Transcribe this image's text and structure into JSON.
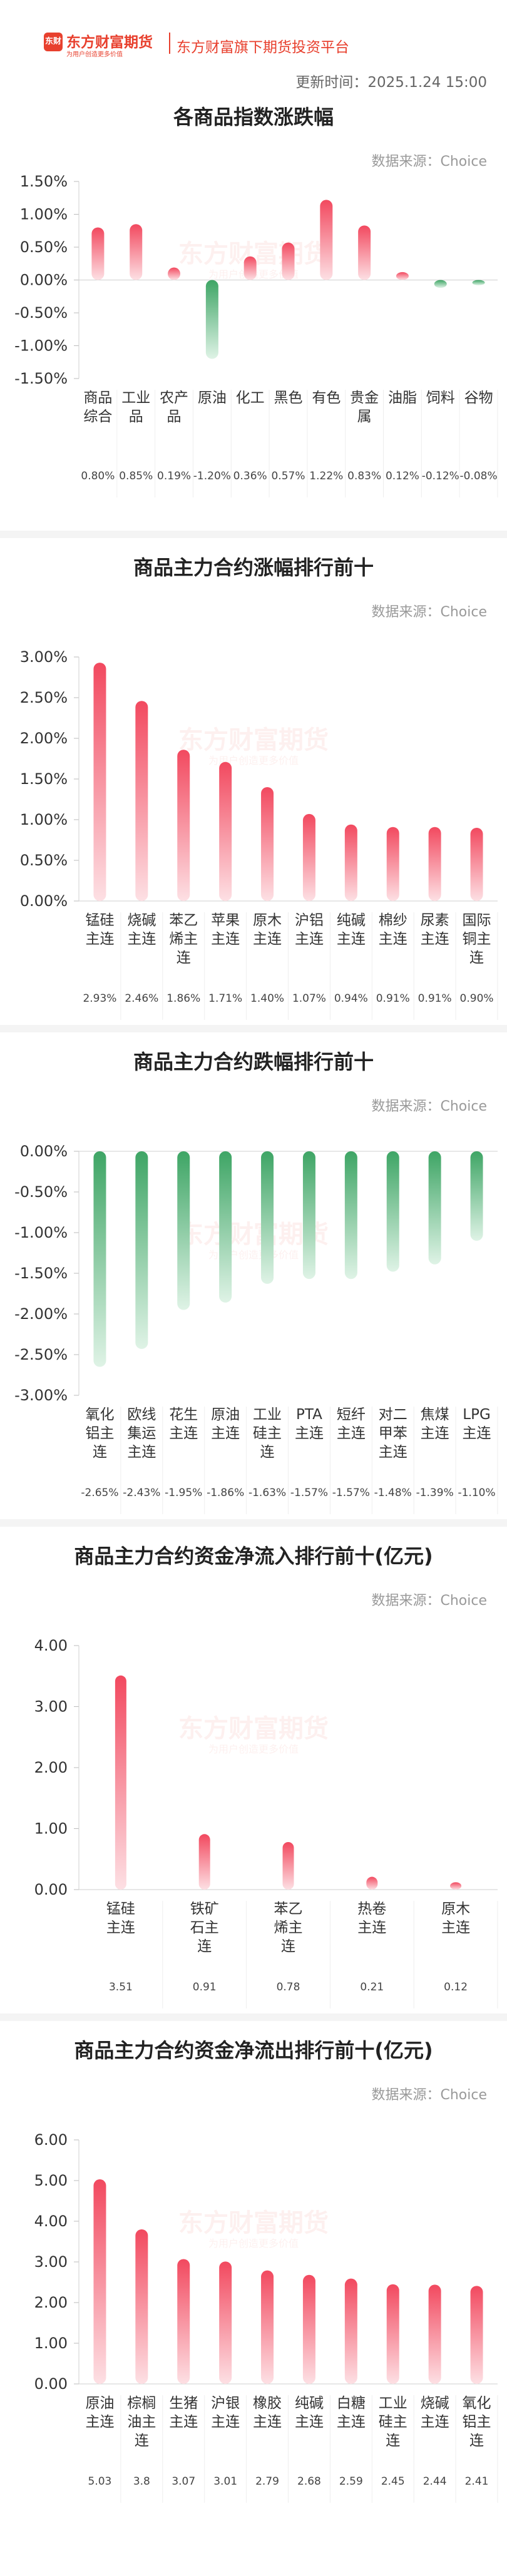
{
  "header": {
    "logo_badge": "东财",
    "logo_text": "东方财富期货",
    "logo_slogan": "为用户创造更多价值",
    "platform": "东方财富旗下期货投资平台",
    "update_time": "更新时间：2025.1.24 15:00"
  },
  "watermark": {
    "main": "东方财富期货",
    "sub": "为用户创造更多价值"
  },
  "colors": {
    "up_top": "#f2495f",
    "up_bottom": "#fde0e4",
    "down_top": "#3ea565",
    "down_bottom": "#dff3e6",
    "brand": "#e8402e"
  },
  "chart_data": [
    {
      "type": "bar",
      "title": "各商品指数涨跌幅",
      "source": "数据来源：Choice",
      "categories": [
        "商品综合",
        "工业品",
        "农产品",
        "原油",
        "化工",
        "黑色",
        "有色",
        "贵金属",
        "油脂",
        "饲料",
        "谷物"
      ],
      "cat_lines": [
        [
          "商品",
          "综合"
        ],
        [
          "工业",
          "品"
        ],
        [
          "农产",
          "品"
        ],
        [
          "原油"
        ],
        [
          "化工"
        ],
        [
          "黑色"
        ],
        [
          "有色"
        ],
        [
          "贵金",
          "属"
        ],
        [
          "油脂"
        ],
        [
          "饲料"
        ],
        [
          "谷物"
        ]
      ],
      "values": [
        0.8,
        0.85,
        0.19,
        -1.2,
        0.36,
        0.57,
        1.22,
        0.83,
        0.12,
        -0.12,
        -0.08
      ],
      "labels": [
        "0.80%",
        "0.85%",
        "0.19%",
        "-1.20%",
        "0.36%",
        "0.57%",
        "1.22%",
        "0.83%",
        "0.12%",
        "-0.12%",
        "-0.08%"
      ],
      "ylim": [
        -1.5,
        1.5
      ],
      "yticks": [
        1.5,
        1.0,
        0.5,
        0.0,
        -0.5,
        -1.0,
        -1.5
      ],
      "ytick_labels": [
        "1.50%",
        "1.00%",
        "0.50%",
        "0.00%",
        "-0.50%",
        "-1.00%",
        "-1.50%"
      ]
    },
    {
      "type": "bar",
      "title": "商品主力合约涨幅排行前十",
      "source": "数据来源：Choice",
      "categories": [
        "锰硅主连",
        "烧碱主连",
        "苯乙烯主连",
        "苹果主连",
        "原木主连",
        "沪铝主连",
        "纯碱主连",
        "棉纱主连",
        "尿素主连",
        "国际铜主连"
      ],
      "cat_lines": [
        [
          "锰硅",
          "主连"
        ],
        [
          "烧碱",
          "主连"
        ],
        [
          "苯乙",
          "烯主",
          "连"
        ],
        [
          "苹果",
          "主连"
        ],
        [
          "原木",
          "主连"
        ],
        [
          "沪铝",
          "主连"
        ],
        [
          "纯碱",
          "主连"
        ],
        [
          "棉纱",
          "主连"
        ],
        [
          "尿素",
          "主连"
        ],
        [
          "国际",
          "铜主",
          "连"
        ]
      ],
      "values": [
        2.93,
        2.46,
        1.86,
        1.71,
        1.4,
        1.07,
        0.94,
        0.91,
        0.91,
        0.9
      ],
      "labels": [
        "2.93%",
        "2.46%",
        "1.86%",
        "1.71%",
        "1.40%",
        "1.07%",
        "0.94%",
        "0.91%",
        "0.91%",
        "0.90%"
      ],
      "ylim": [
        0,
        3.0
      ],
      "yticks": [
        3.0,
        2.5,
        2.0,
        1.5,
        1.0,
        0.5,
        0.0
      ],
      "ytick_labels": [
        "3.00%",
        "2.50%",
        "2.00%",
        "1.50%",
        "1.00%",
        "0.50%",
        "0.00%"
      ]
    },
    {
      "type": "bar",
      "title": "商品主力合约跌幅排行前十",
      "source": "数据来源：Choice",
      "categories": [
        "氧化铝主连",
        "欧线集运主连",
        "花生主连",
        "原油主连",
        "工业硅主连",
        "PTA主连",
        "短纤主连",
        "对二甲苯主连",
        "焦煤主连",
        "LPG主连"
      ],
      "cat_lines": [
        [
          "氧化",
          "铝主",
          "连"
        ],
        [
          "欧线",
          "集运",
          "主连"
        ],
        [
          "花生",
          "主连"
        ],
        [
          "原油",
          "主连"
        ],
        [
          "工业",
          "硅主",
          "连"
        ],
        [
          "PTA",
          "主连"
        ],
        [
          "短纤",
          "主连"
        ],
        [
          "对二",
          "甲苯",
          "主连"
        ],
        [
          "焦煤",
          "主连"
        ],
        [
          "LPG",
          "主连"
        ]
      ],
      "values": [
        -2.65,
        -2.43,
        -1.95,
        -1.86,
        -1.63,
        -1.57,
        -1.57,
        -1.48,
        -1.39,
        -1.1
      ],
      "labels": [
        "-2.65%",
        "-2.43%",
        "-1.95%",
        "-1.86%",
        "-1.63%",
        "-1.57%",
        "-1.57%",
        "-1.48%",
        "-1.39%",
        "-1.10%"
      ],
      "ylim": [
        -3.0,
        0
      ],
      "yticks": [
        0.0,
        -0.5,
        -1.0,
        -1.5,
        -2.0,
        -2.5,
        -3.0
      ],
      "ytick_labels": [
        "0.00%",
        "-0.50%",
        "-1.00%",
        "-1.50%",
        "-2.00%",
        "-2.50%",
        "-3.00%"
      ]
    },
    {
      "type": "bar",
      "title": "商品主力合约资金净流入排行前十(亿元)",
      "source": "数据来源：Choice",
      "categories": [
        "锰硅主连",
        "铁矿石主连",
        "苯乙烯主连",
        "热卷主连",
        "原木主连"
      ],
      "cat_lines": [
        [
          "锰硅",
          "主连"
        ],
        [
          "铁矿",
          "石主",
          "连"
        ],
        [
          "苯乙",
          "烯主",
          "连"
        ],
        [
          "热卷",
          "主连"
        ],
        [
          "原木",
          "主连"
        ]
      ],
      "values": [
        3.51,
        0.91,
        0.78,
        0.21,
        0.12
      ],
      "labels": [
        "3.51",
        "0.91",
        "0.78",
        "0.21",
        "0.12"
      ],
      "ylim": [
        0,
        4.0
      ],
      "yticks": [
        4.0,
        3.0,
        2.0,
        1.0,
        0.0
      ],
      "ytick_labels": [
        "4.00",
        "3.00",
        "2.00",
        "1.00",
        "0.00"
      ]
    },
    {
      "type": "bar",
      "title": "商品主力合约资金净流出排行前十(亿元)",
      "source": "数据来源：Choice",
      "categories": [
        "原油主连",
        "棕榈油主连",
        "生猪主连",
        "沪银主连",
        "橡胶主连",
        "纯碱主连",
        "白糖主连",
        "工业硅主连",
        "烧碱主连",
        "氧化铝主连"
      ],
      "cat_lines": [
        [
          "原油",
          "主连"
        ],
        [
          "棕榈",
          "油主",
          "连"
        ],
        [
          "生猪",
          "主连"
        ],
        [
          "沪银",
          "主连"
        ],
        [
          "橡胶",
          "主连"
        ],
        [
          "纯碱",
          "主连"
        ],
        [
          "白糖",
          "主连"
        ],
        [
          "工业",
          "硅主",
          "连"
        ],
        [
          "烧碱",
          "主连"
        ],
        [
          "氧化",
          "铝主",
          "连"
        ]
      ],
      "values": [
        5.03,
        3.8,
        3.07,
        3.01,
        2.79,
        2.68,
        2.59,
        2.45,
        2.44,
        2.41
      ],
      "labels": [
        "5.03",
        "3.8",
        "3.07",
        "3.01",
        "2.79",
        "2.68",
        "2.59",
        "2.45",
        "2.44",
        "2.41"
      ],
      "ylim": [
        0,
        6.0
      ],
      "yticks": [
        6.0,
        5.0,
        4.0,
        3.0,
        2.0,
        1.0,
        0.0
      ],
      "ytick_labels": [
        "6.00",
        "5.00",
        "4.00",
        "3.00",
        "2.00",
        "1.00",
        "0.00"
      ]
    }
  ]
}
